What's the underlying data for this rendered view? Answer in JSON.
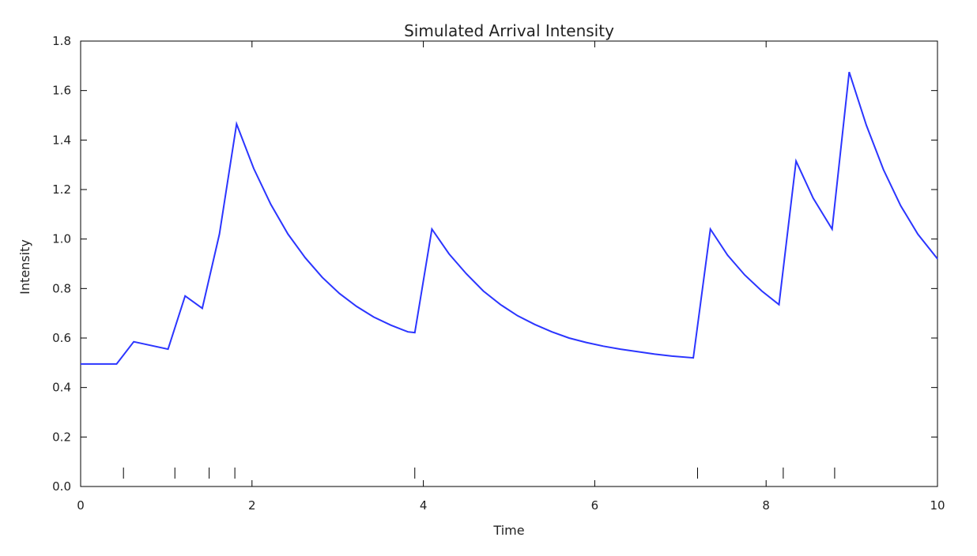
{
  "chart_data": {
    "type": "line",
    "title": "Simulated Arrival Intensity",
    "xlabel": "Time",
    "ylabel": "Intensity",
    "xlim": [
      0,
      10
    ],
    "ylim": [
      0,
      1.8
    ],
    "x_ticks": [
      0,
      2,
      4,
      6,
      8,
      10
    ],
    "x_tick_labels": [
      "0",
      "2",
      "4",
      "6",
      "8",
      "10"
    ],
    "y_ticks": [
      0.0,
      0.2,
      0.4,
      0.6,
      0.8,
      1.0,
      1.2,
      1.4,
      1.6,
      1.8
    ],
    "y_tick_labels": [
      "0.0",
      "0.2",
      "0.4",
      "0.6",
      "0.8",
      "1.0",
      "1.2",
      "1.4",
      "1.6",
      "1.8"
    ],
    "grid": false,
    "series": [
      {
        "color": "#2b35ff",
        "x": [
          0.0,
          0.42,
          0.62,
          1.02,
          1.22,
          1.42,
          1.62,
          1.82,
          2.02,
          2.22,
          2.42,
          2.62,
          2.82,
          3.02,
          3.22,
          3.42,
          3.62,
          3.82,
          3.9,
          4.1,
          4.3,
          4.5,
          4.7,
          4.9,
          5.1,
          5.3,
          5.5,
          5.7,
          5.9,
          6.1,
          6.3,
          6.5,
          6.7,
          6.9,
          7.15,
          7.35,
          7.55,
          7.75,
          7.95,
          8.15,
          8.35,
          8.55,
          8.77,
          8.97,
          9.17,
          9.37,
          9.57,
          9.77,
          10.0
        ],
        "y": [
          0.495,
          0.495,
          0.585,
          0.555,
          0.77,
          0.72,
          1.02,
          1.465,
          1.285,
          1.14,
          1.02,
          0.925,
          0.845,
          0.78,
          0.728,
          0.685,
          0.652,
          0.625,
          0.622,
          1.04,
          0.94,
          0.86,
          0.79,
          0.735,
          0.69,
          0.655,
          0.625,
          0.6,
          0.582,
          0.567,
          0.555,
          0.545,
          0.535,
          0.527,
          0.52,
          1.04,
          0.935,
          0.855,
          0.79,
          0.735,
          1.315,
          1.165,
          1.04,
          1.675,
          1.46,
          1.28,
          1.135,
          1.02,
          0.92
        ]
      }
    ],
    "event_times": [
      0.5,
      1.1,
      1.5,
      1.8,
      3.9,
      7.2,
      8.2,
      8.8
    ]
  }
}
